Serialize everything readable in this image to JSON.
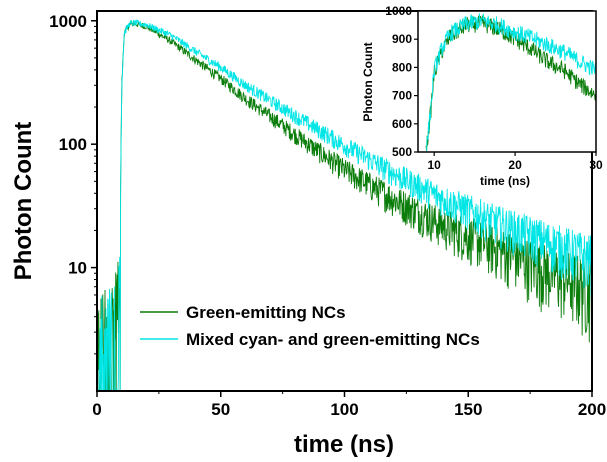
{
  "chart_data": [
    {
      "type": "line",
      "panel": "main",
      "xlabel": "time (ns)",
      "ylabel": "Photon Count",
      "xlim": [
        0,
        200
      ],
      "ylim": [
        1,
        1200
      ],
      "yscale": "log",
      "xticks": [
        0,
        50,
        100,
        150,
        200
      ],
      "yticks": [
        10,
        100,
        1000
      ],
      "legend_placement": "bottom-left",
      "series": [
        {
          "name": "Green-emitting NCs",
          "color": "#0a7d0a",
          "x": [
            0,
            5,
            9,
            10,
            11,
            13,
            15,
            20,
            30,
            40,
            50,
            60,
            80,
            100,
            120,
            140,
            160,
            180,
            200
          ],
          "y": [
            2.5,
            3,
            5,
            300,
            800,
            930,
            950,
            900,
            680,
            480,
            340,
            235,
            120,
            62,
            36,
            22,
            15,
            10,
            7
          ]
        },
        {
          "name": "Mixed cyan- and green-emitting NCs",
          "color": "#00e5e5",
          "x": [
            0,
            5,
            9,
            10,
            11,
            13,
            15,
            20,
            30,
            40,
            50,
            60,
            80,
            100,
            120,
            140,
            160,
            180,
            200
          ],
          "y": [
            2.5,
            3,
            5,
            300,
            800,
            940,
            960,
            930,
            760,
            560,
            420,
            300,
            170,
            98,
            58,
            36,
            24,
            17,
            12
          ]
        }
      ]
    },
    {
      "type": "line",
      "panel": "inset",
      "xlabel": "time (ns)",
      "ylabel": "Photon Count",
      "xlim": [
        8,
        30
      ],
      "ylim": [
        500,
        1000
      ],
      "xticks": [
        10,
        20,
        30
      ],
      "yticks": [
        500,
        600,
        700,
        800,
        900,
        1000
      ],
      "series": [
        {
          "name": "Green-emitting NCs",
          "color": "#0a7d0a",
          "x": [
            9,
            9.6,
            10,
            11,
            12,
            14,
            16,
            18,
            20,
            22,
            24,
            26,
            28,
            30
          ],
          "y": [
            500,
            650,
            780,
            860,
            910,
            950,
            955,
            935,
            900,
            865,
            820,
            790,
            740,
            700
          ]
        },
        {
          "name": "Mixed cyan- and green-emitting NCs",
          "color": "#00e5e5",
          "x": [
            9,
            9.6,
            10,
            11,
            12,
            14,
            16,
            18,
            20,
            22,
            24,
            26,
            28,
            30
          ],
          "y": [
            500,
            660,
            790,
            870,
            920,
            955,
            965,
            950,
            925,
            905,
            880,
            855,
            820,
            790
          ]
        }
      ]
    }
  ]
}
